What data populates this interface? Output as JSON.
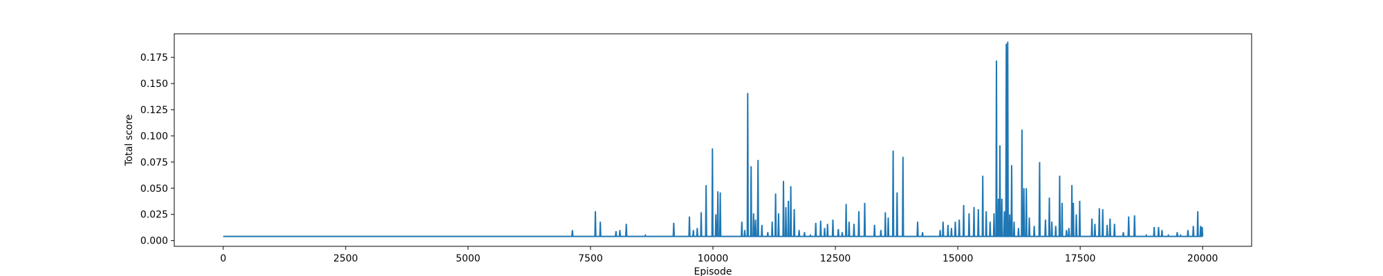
{
  "chart_data": {
    "type": "line",
    "xlabel": "Episode",
    "ylabel": "Total score",
    "xlim": [
      -1000,
      21000
    ],
    "ylim": [
      -0.0055,
      0.1975
    ],
    "xticks": [
      0,
      2500,
      5000,
      7500,
      10000,
      12500,
      15000,
      17500,
      20000
    ],
    "xtick_labels": [
      "0",
      "2500",
      "5000",
      "7500",
      "10000",
      "12500",
      "15000",
      "17500",
      "20000"
    ],
    "yticks": [
      0.0,
      0.025,
      0.05,
      0.075,
      0.1,
      0.125,
      0.15,
      0.175
    ],
    "ytick_labels": [
      "0.000",
      "0.025",
      "0.050",
      "0.075",
      "0.100",
      "0.125",
      "0.150",
      "0.175"
    ],
    "grid": false,
    "legend": "none",
    "series": [
      {
        "color": "#1f77b4",
        "baseline": 0.004,
        "x_range": [
          0,
          20000
        ],
        "spikes": [
          [
            7130,
            0.01
          ],
          [
            7600,
            0.028
          ],
          [
            7700,
            0.018
          ],
          [
            8020,
            0.009
          ],
          [
            8100,
            0.01
          ],
          [
            8230,
            0.016
          ],
          [
            8620,
            0.005
          ],
          [
            9200,
            0.017
          ],
          [
            9520,
            0.023
          ],
          [
            9600,
            0.01
          ],
          [
            9680,
            0.012
          ],
          [
            9760,
            0.027
          ],
          [
            9860,
            0.053
          ],
          [
            9990,
            0.088
          ],
          [
            10060,
            0.025
          ],
          [
            10100,
            0.047
          ],
          [
            10150,
            0.046
          ],
          [
            10590,
            0.018
          ],
          [
            10650,
            0.01
          ],
          [
            10710,
            0.141
          ],
          [
            10780,
            0.071
          ],
          [
            10830,
            0.026
          ],
          [
            10870,
            0.02
          ],
          [
            10920,
            0.077
          ],
          [
            11000,
            0.015
          ],
          [
            11120,
            0.008
          ],
          [
            11210,
            0.018
          ],
          [
            11280,
            0.045
          ],
          [
            11340,
            0.026
          ],
          [
            11440,
            0.057
          ],
          [
            11490,
            0.032
          ],
          [
            11540,
            0.038
          ],
          [
            11590,
            0.052
          ],
          [
            11660,
            0.03
          ],
          [
            11760,
            0.01
          ],
          [
            11870,
            0.008
          ],
          [
            11990,
            0.005
          ],
          [
            12100,
            0.017
          ],
          [
            12200,
            0.019
          ],
          [
            12280,
            0.012
          ],
          [
            12340,
            0.016
          ],
          [
            12450,
            0.02
          ],
          [
            12560,
            0.011
          ],
          [
            12640,
            0.008
          ],
          [
            12720,
            0.035
          ],
          [
            12780,
            0.018
          ],
          [
            12880,
            0.016
          ],
          [
            12980,
            0.028
          ],
          [
            13100,
            0.036
          ],
          [
            13300,
            0.015
          ],
          [
            13430,
            0.01
          ],
          [
            13520,
            0.027
          ],
          [
            13580,
            0.022
          ],
          [
            13680,
            0.086
          ],
          [
            13760,
            0.046
          ],
          [
            13880,
            0.08
          ],
          [
            14180,
            0.018
          ],
          [
            14280,
            0.008
          ],
          [
            14640,
            0.01
          ],
          [
            14700,
            0.018
          ],
          [
            14800,
            0.015
          ],
          [
            14870,
            0.012
          ],
          [
            14950,
            0.018
          ],
          [
            15030,
            0.02
          ],
          [
            15120,
            0.034
          ],
          [
            15230,
            0.026
          ],
          [
            15330,
            0.032
          ],
          [
            15420,
            0.03
          ],
          [
            15510,
            0.062
          ],
          [
            15580,
            0.028
          ],
          [
            15660,
            0.018
          ],
          [
            15740,
            0.026
          ],
          [
            15790,
            0.172
          ],
          [
            15830,
            0.04
          ],
          [
            15860,
            0.091
          ],
          [
            15900,
            0.04
          ],
          [
            15950,
            0.028
          ],
          [
            15990,
            0.188
          ],
          [
            16020,
            0.19
          ],
          [
            16060,
            0.025
          ],
          [
            16100,
            0.072
          ],
          [
            16150,
            0.018
          ],
          [
            16240,
            0.012
          ],
          [
            16310,
            0.106
          ],
          [
            16350,
            0.05
          ],
          [
            16400,
            0.05
          ],
          [
            16460,
            0.022
          ],
          [
            16560,
            0.014
          ],
          [
            16670,
            0.075
          ],
          [
            16790,
            0.02
          ],
          [
            16870,
            0.041
          ],
          [
            16920,
            0.018
          ],
          [
            17000,
            0.014
          ],
          [
            17080,
            0.062
          ],
          [
            17130,
            0.036
          ],
          [
            17220,
            0.01
          ],
          [
            17270,
            0.012
          ],
          [
            17330,
            0.053
          ],
          [
            17360,
            0.036
          ],
          [
            17420,
            0.025
          ],
          [
            17490,
            0.038
          ],
          [
            17740,
            0.021
          ],
          [
            17800,
            0.016
          ],
          [
            17890,
            0.031
          ],
          [
            17960,
            0.03
          ],
          [
            18050,
            0.015
          ],
          [
            18110,
            0.021
          ],
          [
            18200,
            0.016
          ],
          [
            18380,
            0.008
          ],
          [
            18490,
            0.023
          ],
          [
            18610,
            0.024
          ],
          [
            18850,
            0.005
          ],
          [
            19010,
            0.013
          ],
          [
            19100,
            0.013
          ],
          [
            19170,
            0.01
          ],
          [
            19300,
            0.005
          ],
          [
            19480,
            0.008
          ],
          [
            19550,
            0.005
          ],
          [
            19700,
            0.01
          ],
          [
            19810,
            0.014
          ],
          [
            19900,
            0.028
          ],
          [
            19960,
            0.014
          ],
          [
            19990,
            0.013
          ]
        ]
      }
    ]
  }
}
